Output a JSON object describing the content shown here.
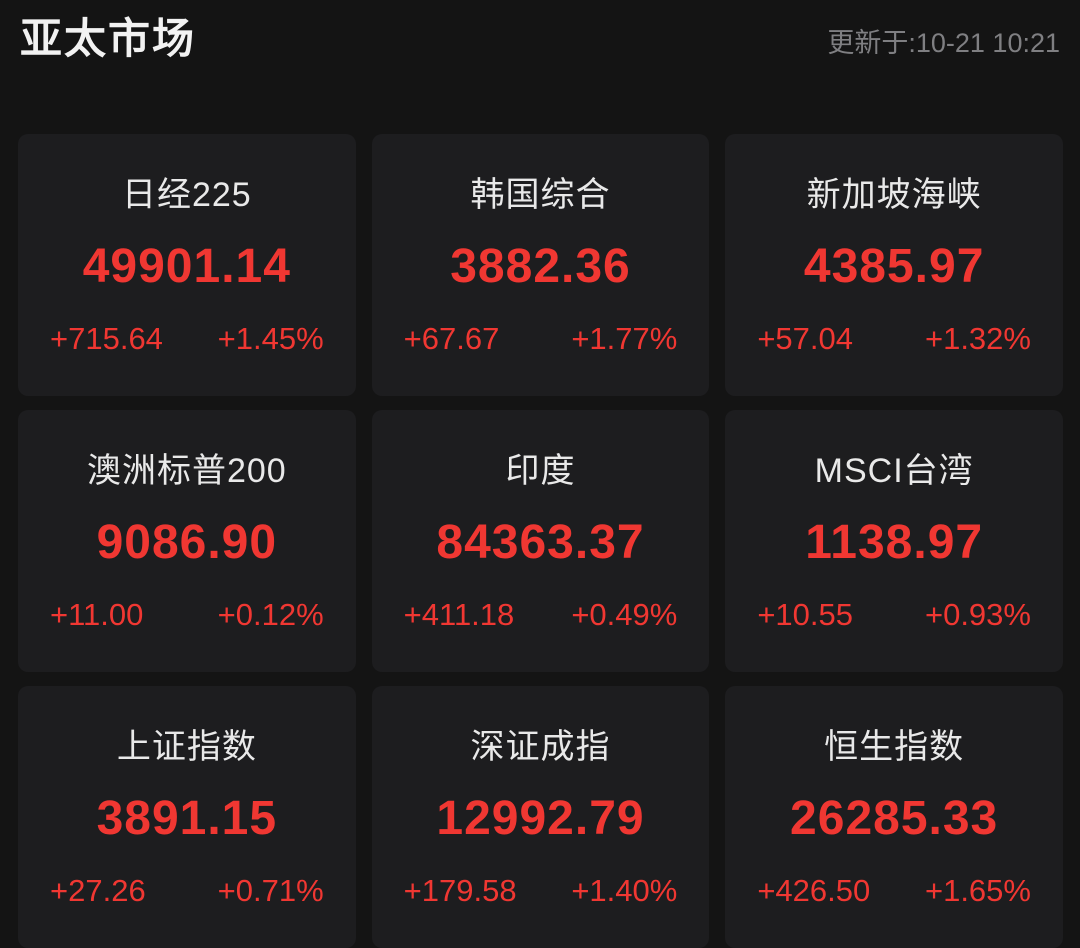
{
  "header": {
    "title": "亚太市场",
    "updated_label": "更新于:10-21 10:21"
  },
  "colors": {
    "page_bg": "#141414",
    "card_bg": "#1d1d1f",
    "up_red": "#f03732",
    "title_white": "#f2f2f2",
    "name_white": "#e9e9e9",
    "timestamp_gray": "#7f7f82"
  },
  "markets": [
    {
      "name": "日经225",
      "value": "49901.14",
      "change": "+715.64",
      "percent": "+1.45%"
    },
    {
      "name": "韩国综合",
      "value": "3882.36",
      "change": "+67.67",
      "percent": "+1.77%"
    },
    {
      "name": "新加坡海峡",
      "value": "4385.97",
      "change": "+57.04",
      "percent": "+1.32%"
    },
    {
      "name": "澳洲标普200",
      "value": "9086.90",
      "change": "+11.00",
      "percent": "+0.12%"
    },
    {
      "name": "印度",
      "value": "84363.37",
      "change": "+411.18",
      "percent": "+0.49%"
    },
    {
      "name": "MSCI台湾",
      "value": "1138.97",
      "change": "+10.55",
      "percent": "+0.93%"
    },
    {
      "name": "上证指数",
      "value": "3891.15",
      "change": "+27.26",
      "percent": "+0.71%"
    },
    {
      "name": "深证成指",
      "value": "12992.79",
      "change": "+179.58",
      "percent": "+1.40%"
    },
    {
      "name": "恒生指数",
      "value": "26285.33",
      "change": "+426.50",
      "percent": "+1.65%"
    }
  ]
}
